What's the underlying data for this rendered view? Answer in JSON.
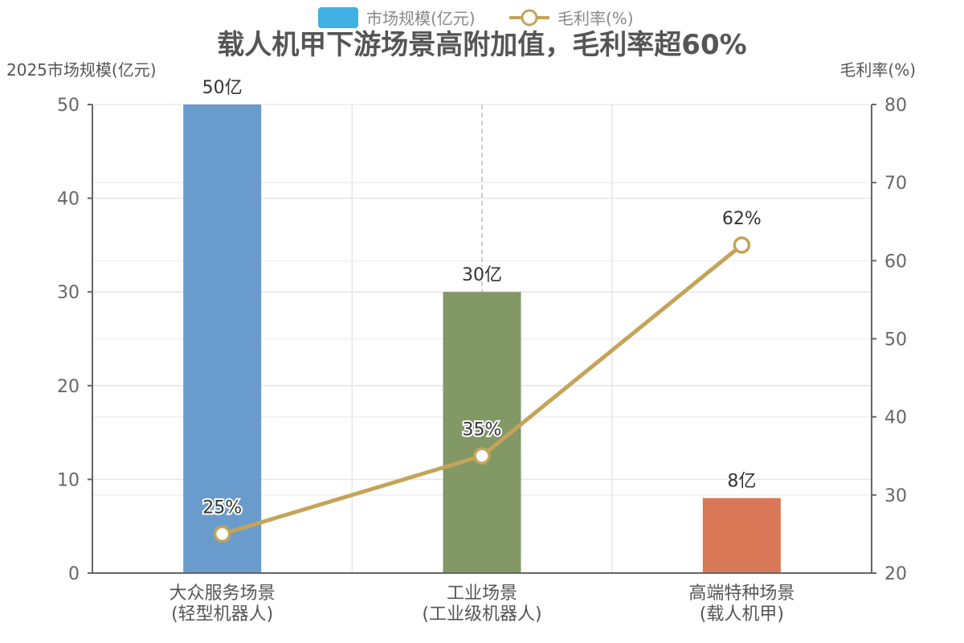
{
  "chart_data": {
    "type": "bar",
    "title": "载人机甲下游场景高附加值，毛利率超60%",
    "categories": [
      [
        "大众服务场景",
        "(轻型机器人)"
      ],
      [
        "工业场景",
        "(工业级机器人)"
      ],
      [
        "高端特种场景",
        "(载人机甲)"
      ]
    ],
    "left_axis": {
      "label": "2025市场规模(亿元)",
      "ticks": [
        "0",
        "10",
        "20",
        "30",
        "40",
        "50"
      ],
      "ylim": [
        0,
        50
      ]
    },
    "right_axis": {
      "label": "毛利率(%)",
      "ticks": [
        "20",
        "30",
        "40",
        "50",
        "60",
        "70",
        "80"
      ],
      "ylim": [
        20,
        80
      ]
    },
    "legend": {
      "placement": "top-center"
    },
    "grid": true,
    "series": [
      {
        "name": "市场规模(亿元)",
        "type": "bar",
        "axis": "left",
        "values": [
          50,
          30,
          8
        ],
        "labels": [
          "50亿",
          "30亿",
          "8亿"
        ],
        "colors": [
          "#6a9bcd",
          "#829865",
          "#d97856"
        ],
        "legend_color": "#3fb1e3"
      },
      {
        "name": "毛利率(%)",
        "type": "line",
        "axis": "right",
        "values": [
          25,
          35,
          62
        ],
        "labels": [
          "25%",
          "35%",
          "62%"
        ],
        "color": "#c4a45a"
      }
    ]
  }
}
